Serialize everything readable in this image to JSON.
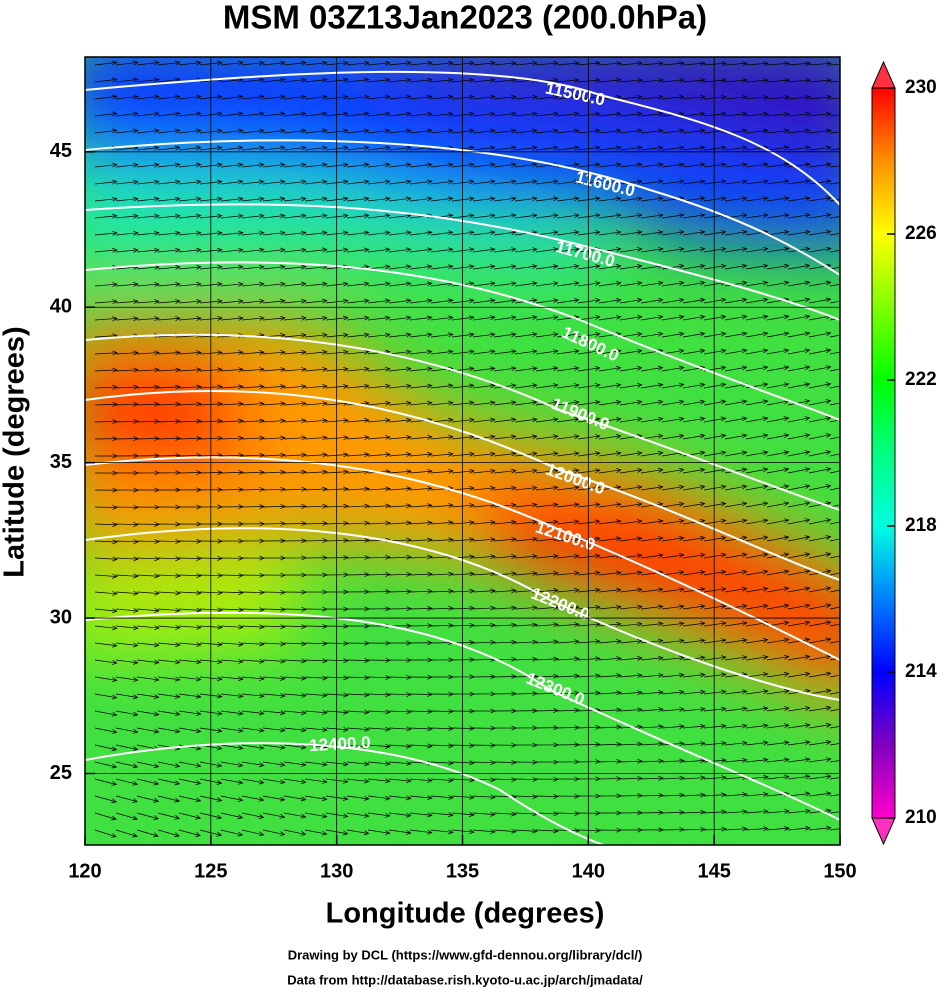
{
  "title": "MSM 03Z13Jan2023 (200.0hPa)",
  "x_axis": {
    "label": "Longitude (degrees)",
    "lim": [
      120,
      150
    ],
    "ticks": [
      120,
      125,
      130,
      135,
      140,
      145,
      150
    ]
  },
  "y_axis": {
    "label": "Latitude  (degrees)",
    "lim": [
      22.7,
      48.05
    ],
    "ticks": [
      25,
      30,
      35,
      40,
      45
    ]
  },
  "colorbar": {
    "lim": [
      210,
      230
    ],
    "ticks": [
      210,
      214,
      218,
      222,
      226,
      230
    ]
  },
  "contour_labels": [
    "11500.0",
    "11600.0",
    "11700.0",
    "11800.0",
    "11900.0",
    "12000.0",
    "12100.0",
    "12200.0",
    "12300.0",
    "12400.0"
  ],
  "credits": [
    "Drawing by DCL (https://www.gfd-dennou.org/library/dcl/)",
    "Data from http://database.rish.kyoto-u.ac.jp/arch/jmadata/"
  ]
}
